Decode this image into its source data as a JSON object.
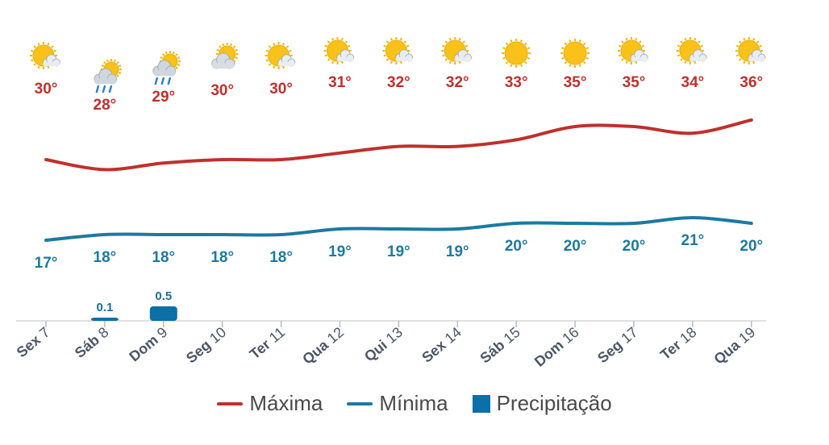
{
  "chart_data": {
    "type": "line",
    "categories": [
      {
        "day": "Sex",
        "num": "7"
      },
      {
        "day": "Sáb",
        "num": "8"
      },
      {
        "day": "Dom",
        "num": "9"
      },
      {
        "day": "Seg",
        "num": "10"
      },
      {
        "day": "Ter",
        "num": "11"
      },
      {
        "day": "Qua",
        "num": "12"
      },
      {
        "day": "Qui",
        "num": "13"
      },
      {
        "day": "Sex",
        "num": "14"
      },
      {
        "day": "Sáb",
        "num": "15"
      },
      {
        "day": "Dom",
        "num": "16"
      },
      {
        "day": "Seg",
        "num": "17"
      },
      {
        "day": "Ter",
        "num": "18"
      },
      {
        "day": "Qua",
        "num": "19"
      }
    ],
    "icons": [
      "partly-sunny-icon",
      "rain-icon",
      "rain-icon",
      "cloudy-sun-icon",
      "partly-sunny-icon",
      "partly-sunny-icon",
      "partly-sunny-icon",
      "partly-sunny-icon",
      "sun-icon",
      "sun-icon",
      "partly-sunny-icon",
      "partly-sunny-icon",
      "partly-sunny-icon"
    ],
    "series": [
      {
        "name": "Máxima",
        "color": "#c0302c",
        "values": [
          30,
          28,
          29,
          30,
          30,
          31,
          32,
          32,
          33,
          35,
          35,
          34,
          36
        ]
      },
      {
        "name": "Mínima",
        "color": "#1b7aa0",
        "values": [
          17,
          18,
          18,
          18,
          18,
          19,
          19,
          19,
          20,
          20,
          20,
          21,
          20
        ]
      },
      {
        "name": "Precipitação",
        "color": "#0b6fa8",
        "type": "bar",
        "values": [
          null,
          0.1,
          0.5,
          null,
          null,
          null,
          null,
          null,
          null,
          null,
          null,
          null,
          null
        ],
        "labels": [
          "",
          "0.1",
          "0.5",
          "",
          "",
          "",
          "",
          "",
          "",
          "",
          "",
          "",
          ""
        ]
      }
    ],
    "unit_symbol": "°",
    "legend_position": "bottom"
  },
  "legend": {
    "max": "Máxima",
    "min": "Mínima",
    "precip": "Precipitação"
  }
}
